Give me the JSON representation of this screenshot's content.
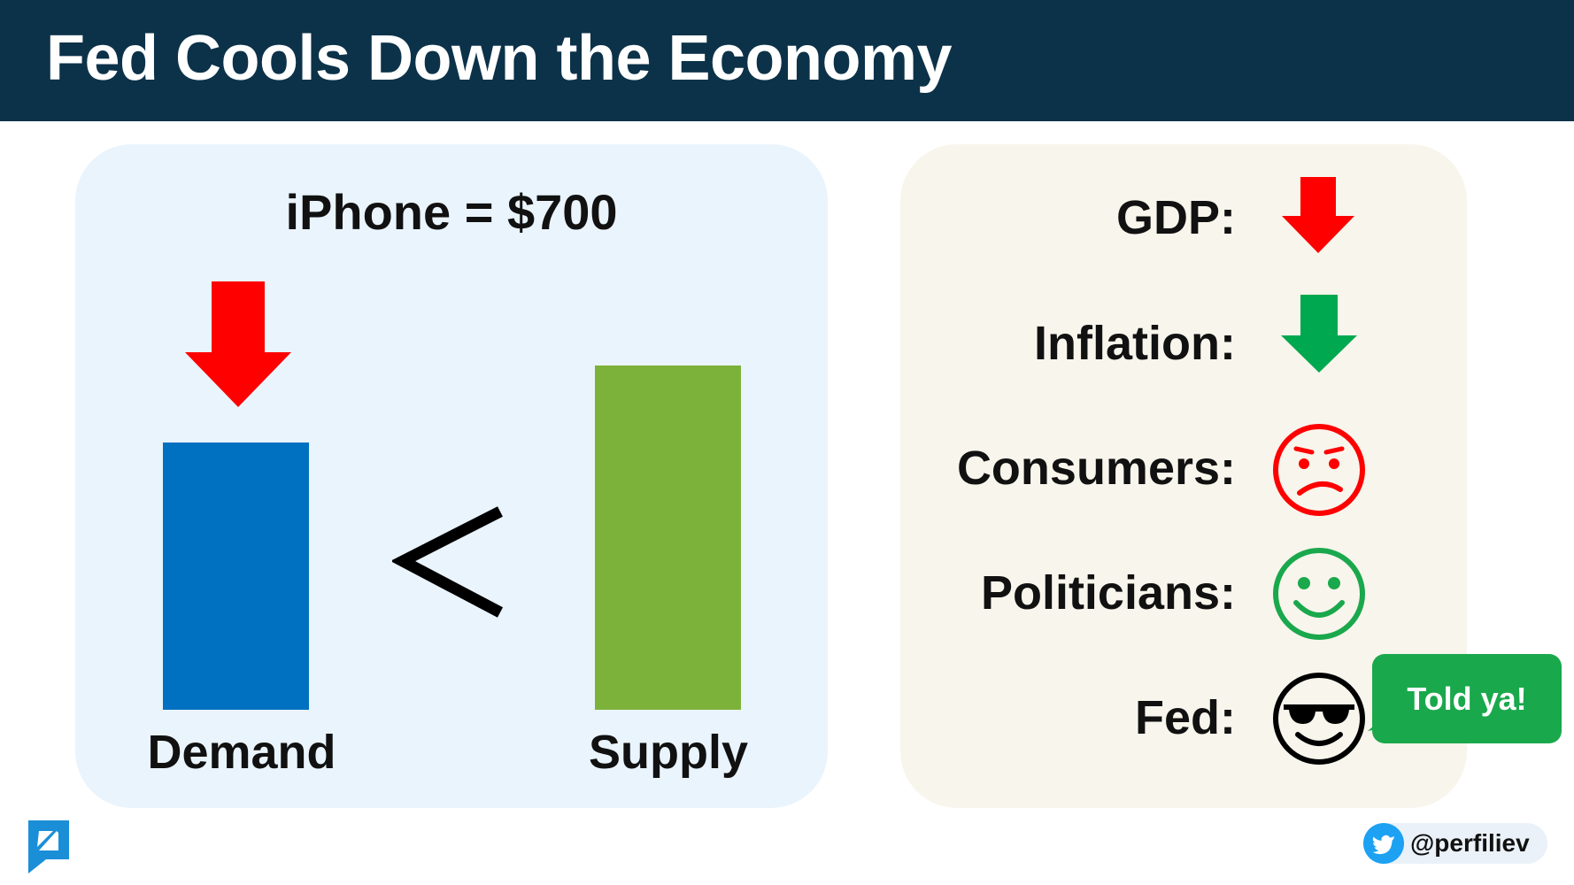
{
  "title": "Fed Cools Down the Economy",
  "market": {
    "price_label": "iPhone = $700",
    "demand_label": "Demand",
    "supply_label": "Supply",
    "comparison": "<",
    "demand_trend": "down",
    "colors": {
      "demand": "#0070c0",
      "supply": "#7cb23a",
      "arrow": "#ff0000"
    }
  },
  "effects": {
    "gdp": {
      "label": "GDP:",
      "icon": "red-down-arrow-icon",
      "color": "#ff0000"
    },
    "inflation": {
      "label": "Inflation:",
      "icon": "green-down-arrow-icon",
      "color": "#00a94f"
    },
    "consumers": {
      "label": "Consumers:",
      "icon": "sad-face-icon",
      "color": "#ff0000"
    },
    "politicians": {
      "label": "Politicians:",
      "icon": "happy-face-icon",
      "color": "#1aa84c"
    },
    "fed": {
      "label": "Fed:",
      "icon": "sunglasses-face-icon",
      "color": "#000000",
      "speech": "Told ya!"
    }
  },
  "footer": {
    "logo_icon": "brand-logo-icon",
    "handle": "@perfiliev",
    "social_icon": "twitter-icon"
  },
  "colors": {
    "header": "#0c3249",
    "left_panel": "#eaf4fd",
    "right_panel": "#f8f5ec"
  }
}
